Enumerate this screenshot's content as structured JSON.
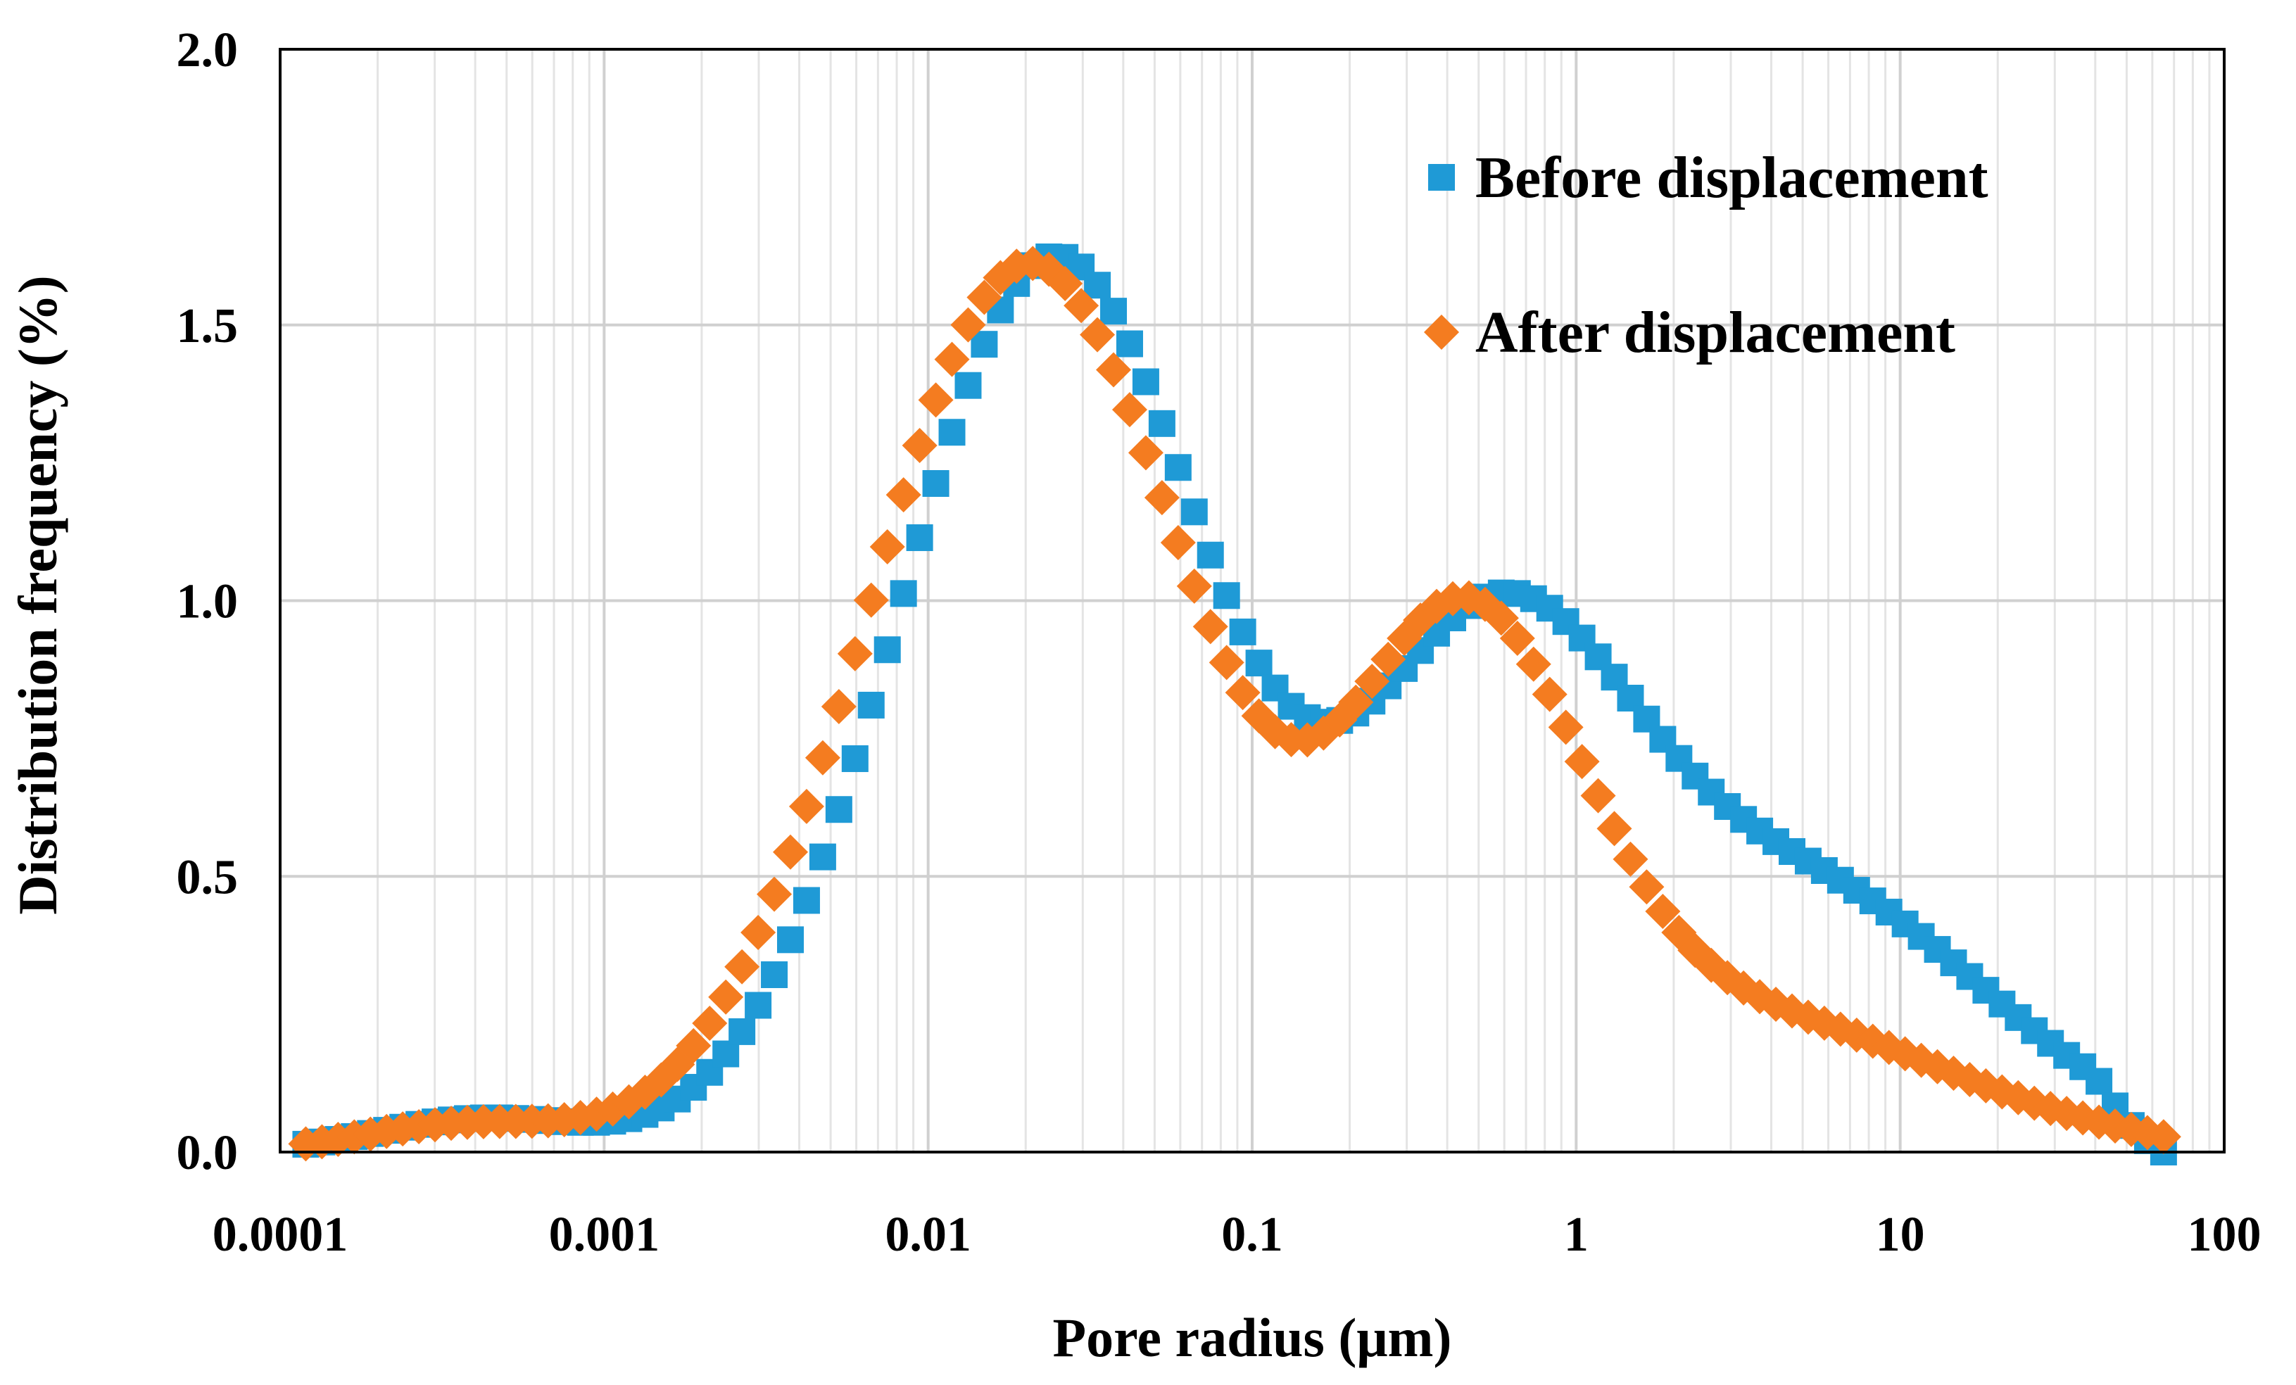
{
  "chart_data": {
    "type": "scatter",
    "title": "",
    "xlabel": "Pore radius (μm)",
    "ylabel": "Distribution frequency (%)",
    "xscale": "log",
    "xlim": [
      0.0001,
      100
    ],
    "ylim": [
      0,
      2.0
    ],
    "grid": true,
    "legend_position": "top-right",
    "xticks": [
      {
        "value": 0.0001,
        "label": "0.0001"
      },
      {
        "value": 0.001,
        "label": "0.001"
      },
      {
        "value": 0.01,
        "label": "0.01"
      },
      {
        "value": 0.1,
        "label": "0.1"
      },
      {
        "value": 1,
        "label": "1"
      },
      {
        "value": 10,
        "label": "10"
      },
      {
        "value": 100,
        "label": "100"
      }
    ],
    "yticks": [
      {
        "value": 0,
        "label": "0.0"
      },
      {
        "value": 0.5,
        "label": "0.5"
      },
      {
        "value": 1.0,
        "label": "1.0"
      },
      {
        "value": 1.5,
        "label": "1.5"
      },
      {
        "value": 2.0,
        "label": "2.0"
      }
    ],
    "series": [
      {
        "name": "Before displacement",
        "marker": "square",
        "color": "#1f9ad6",
        "x_range": [
          0.00012,
          65
        ],
        "points_per_decade": 20,
        "components": [
          {
            "amplitude": 0.06,
            "center": 0.00042,
            "sigma_decades": 0.32
          },
          {
            "amplitude": 1.62,
            "center": 0.0245,
            "sigma_decades": 0.48
          },
          {
            "amplitude": 0.86,
            "center": 0.55,
            "sigma_decades": 0.42
          },
          {
            "amplitude": 0.47,
            "center": 5.0,
            "sigma_decades": 0.58
          }
        ],
        "drop_off": {
          "start": 40,
          "end": 65
        }
      },
      {
        "name": "After displacement",
        "marker": "diamond",
        "color": "#f47c20",
        "x_range": [
          0.00012,
          65
        ],
        "points_per_decade": 20,
        "components": [
          {
            "amplitude": 0.05,
            "center": 0.00038,
            "sigma_decades": 0.32
          },
          {
            "amplitude": 1.61,
            "center": 0.0205,
            "sigma_decades": 0.5
          },
          {
            "amplitude": 0.85,
            "center": 0.45,
            "sigma_decades": 0.36
          },
          {
            "amplitude": 0.25,
            "center": 3.0,
            "sigma_decades": 0.65
          }
        ],
        "drop_off": {
          "start": 60,
          "end": 160
        }
      }
    ]
  }
}
